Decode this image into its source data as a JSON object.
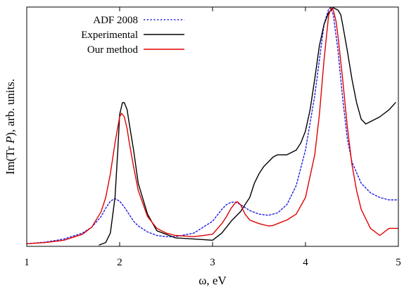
{
  "chart_data": {
    "type": "line",
    "xlabel": "ω, eV",
    "ylabel_parts": [
      "Im(Tr ",
      "P",
      "), arb. units."
    ],
    "xlim": [
      1,
      5
    ],
    "ylim": [
      0,
      1
    ],
    "x_ticks": [
      1,
      2,
      3,
      4,
      5
    ],
    "y_ticks_labeled": false,
    "grid": false,
    "legend_position": "top-left",
    "series": [
      {
        "name": "ADF 2008",
        "color": "#1f1fe0",
        "dash": "dotted",
        "x": [
          1.0,
          1.2,
          1.4,
          1.6,
          1.7,
          1.8,
          1.85,
          1.9,
          1.95,
          2.0,
          2.05,
          2.1,
          2.15,
          2.2,
          2.3,
          2.4,
          2.5,
          2.6,
          2.8,
          3.0,
          3.1,
          3.15,
          3.2,
          3.25,
          3.3,
          3.4,
          3.5,
          3.6,
          3.7,
          3.8,
          3.9,
          4.0,
          4.1,
          4.15,
          4.2,
          4.25,
          4.27,
          4.3,
          4.35,
          4.4,
          4.45,
          4.5,
          4.6,
          4.7,
          4.8,
          4.9,
          5.0
        ],
        "y": [
          0.005,
          0.012,
          0.025,
          0.05,
          0.075,
          0.12,
          0.155,
          0.185,
          0.195,
          0.185,
          0.16,
          0.13,
          0.1,
          0.08,
          0.055,
          0.04,
          0.035,
          0.035,
          0.05,
          0.1,
          0.15,
          0.17,
          0.18,
          0.18,
          0.17,
          0.145,
          0.13,
          0.125,
          0.135,
          0.17,
          0.25,
          0.4,
          0.63,
          0.78,
          0.93,
          0.995,
          1.0,
          0.97,
          0.82,
          0.62,
          0.45,
          0.35,
          0.26,
          0.22,
          0.2,
          0.19,
          0.19
        ]
      },
      {
        "name": "Experimental",
        "color": "#000000",
        "dash": "solid",
        "x": [
          1.78,
          1.85,
          1.9,
          1.95,
          1.98,
          2.0,
          2.03,
          2.05,
          2.08,
          2.1,
          2.15,
          2.2,
          2.3,
          2.4,
          2.6,
          2.8,
          3.0,
          3.1,
          3.2,
          3.3,
          3.4,
          3.45,
          3.5,
          3.55,
          3.6,
          3.65,
          3.7,
          3.8,
          3.9,
          3.95,
          4.0,
          4.05,
          4.1,
          4.15,
          4.2,
          4.25,
          4.3,
          4.35,
          4.38,
          4.4,
          4.45,
          4.5,
          4.55,
          4.6,
          4.65,
          4.7,
          4.8,
          4.9,
          4.97
        ],
        "y": [
          0.0,
          0.01,
          0.05,
          0.2,
          0.4,
          0.55,
          0.6,
          0.6,
          0.57,
          0.52,
          0.4,
          0.26,
          0.13,
          0.06,
          0.03,
          0.025,
          0.02,
          0.05,
          0.1,
          0.14,
          0.2,
          0.26,
          0.3,
          0.33,
          0.35,
          0.37,
          0.38,
          0.38,
          0.4,
          0.43,
          0.48,
          0.57,
          0.7,
          0.84,
          0.93,
          0.98,
          1.0,
          0.99,
          0.97,
          0.93,
          0.82,
          0.7,
          0.6,
          0.53,
          0.51,
          0.52,
          0.54,
          0.57,
          0.6
        ]
      },
      {
        "name": "Our method",
        "color": "#e00000",
        "dash": "solid",
        "x": [
          1.0,
          1.2,
          1.4,
          1.6,
          1.7,
          1.8,
          1.85,
          1.9,
          1.95,
          2.0,
          2.02,
          2.05,
          2.08,
          2.1,
          2.15,
          2.2,
          2.3,
          2.4,
          2.5,
          2.6,
          2.8,
          3.0,
          3.1,
          3.15,
          3.2,
          3.25,
          3.27,
          3.3,
          3.35,
          3.4,
          3.5,
          3.6,
          3.65,
          3.7,
          3.8,
          3.9,
          4.0,
          4.1,
          4.15,
          4.2,
          4.25,
          4.28,
          4.3,
          4.33,
          4.35,
          4.4,
          4.45,
          4.5,
          4.55,
          4.6,
          4.7,
          4.8,
          4.9,
          5.0
        ],
        "y": [
          0.005,
          0.01,
          0.02,
          0.045,
          0.075,
          0.14,
          0.2,
          0.3,
          0.43,
          0.54,
          0.555,
          0.54,
          0.49,
          0.44,
          0.33,
          0.23,
          0.12,
          0.07,
          0.05,
          0.04,
          0.035,
          0.045,
          0.09,
          0.12,
          0.155,
          0.18,
          0.182,
          0.17,
          0.13,
          0.105,
          0.09,
          0.08,
          0.082,
          0.09,
          0.105,
          0.13,
          0.2,
          0.38,
          0.55,
          0.78,
          0.97,
          1.0,
          0.99,
          0.94,
          0.88,
          0.7,
          0.5,
          0.34,
          0.23,
          0.15,
          0.07,
          0.04,
          0.07,
          0.07
        ]
      }
    ]
  }
}
